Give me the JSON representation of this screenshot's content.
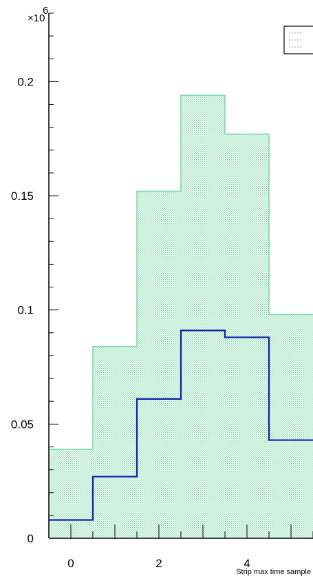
{
  "chart_data": {
    "type": "bar",
    "xlabel": "Strip max time sample",
    "ylabel": "",
    "y_multiplier": "×10",
    "y_multiplier_exp": "6",
    "xlim": [
      -0.5,
      5.5
    ],
    "ylim": [
      0,
      0.23
    ],
    "x_ticks": [
      0,
      2,
      4
    ],
    "y_ticks": [
      0,
      0.05,
      0.1,
      0.15,
      0.2
    ],
    "y_tick_labels": [
      "0",
      "0.05",
      "0.1",
      "0.15",
      "0.2"
    ],
    "x_tick_labels": [
      "0",
      "2",
      "4"
    ],
    "bin_edges": [
      -0.5,
      0.5,
      1.5,
      2.5,
      3.5,
      4.5,
      5.5
    ],
    "series": [
      {
        "style": "filled-hatched",
        "color": "#7fd8a8",
        "values": [
          0.039,
          0.084,
          0.152,
          0.194,
          0.177,
          0.098
        ]
      },
      {
        "style": "line",
        "color": "#0a1fa8",
        "values": [
          0.008,
          0.027,
          0.061,
          0.091,
          0.088,
          0.043
        ]
      }
    ],
    "legend": {
      "position": "top-right",
      "entries": [
        "",
        ""
      ]
    },
    "grid": false
  }
}
